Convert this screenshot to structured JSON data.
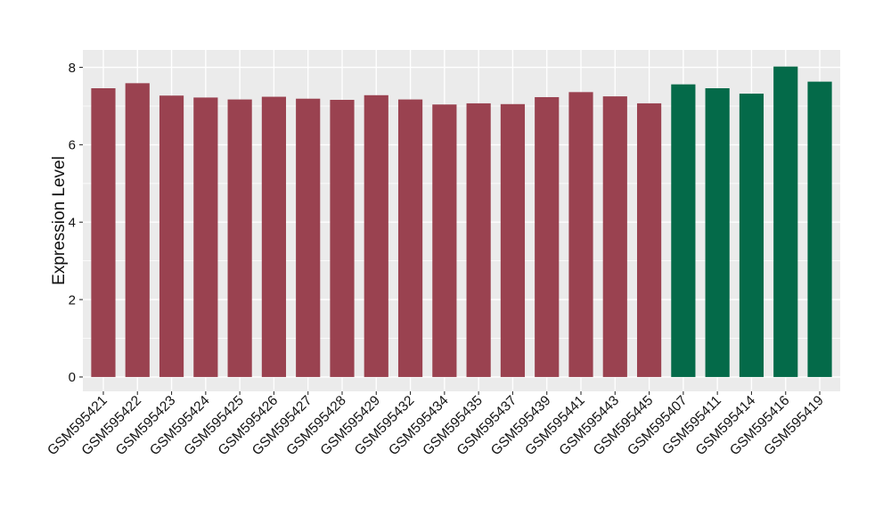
{
  "figure": {
    "background_color": "#FFFFFF"
  },
  "chart_data": {
    "type": "bar",
    "title": "",
    "xlabel": "",
    "ylabel": "Expression Level",
    "categories": [
      "GSM595421",
      "GSM595422",
      "GSM595423",
      "GSM595424",
      "GSM595425",
      "GSM595426",
      "GSM595427",
      "GSM595428",
      "GSM595429",
      "GSM595432",
      "GSM595434",
      "GSM595435",
      "GSM595437",
      "GSM595439",
      "GSM595441",
      "GSM595443",
      "GSM595445",
      "GSM595407",
      "GSM595411",
      "GSM595414",
      "GSM595416",
      "GSM595419"
    ],
    "values": [
      7.46,
      7.59,
      7.27,
      7.22,
      7.17,
      7.24,
      7.19,
      7.16,
      7.28,
      7.17,
      7.04,
      7.07,
      7.05,
      7.23,
      7.36,
      7.25,
      7.07,
      7.56,
      7.46,
      7.32,
      8.02,
      7.63
    ],
    "bar_colors": [
      "#9A4250",
      "#9A4250",
      "#9A4250",
      "#9A4250",
      "#9A4250",
      "#9A4250",
      "#9A4250",
      "#9A4250",
      "#9A4250",
      "#9A4250",
      "#9A4250",
      "#9A4250",
      "#9A4250",
      "#9A4250",
      "#9A4250",
      "#9A4250",
      "#9A4250",
      "#046A49",
      "#046A49",
      "#046A49",
      "#046A49",
      "#046A49"
    ],
    "group_colors": {
      "red_group": "#9A4250",
      "green_group": "#046A49"
    },
    "yticks": [
      0,
      2,
      4,
      6,
      8
    ],
    "minor_yticks": [
      1,
      3,
      5,
      7
    ],
    "ylim": [
      0,
      8.45
    ],
    "panel_y_range": [
      -0.37,
      8.45
    ],
    "x_tick_rotation": 45,
    "grid": "on",
    "legend": "none",
    "panel_background": "#EBEBEB",
    "grid_color": "#FFFFFF",
    "axis_text_color": "#141414",
    "tick_mark_color": "#333333"
  }
}
